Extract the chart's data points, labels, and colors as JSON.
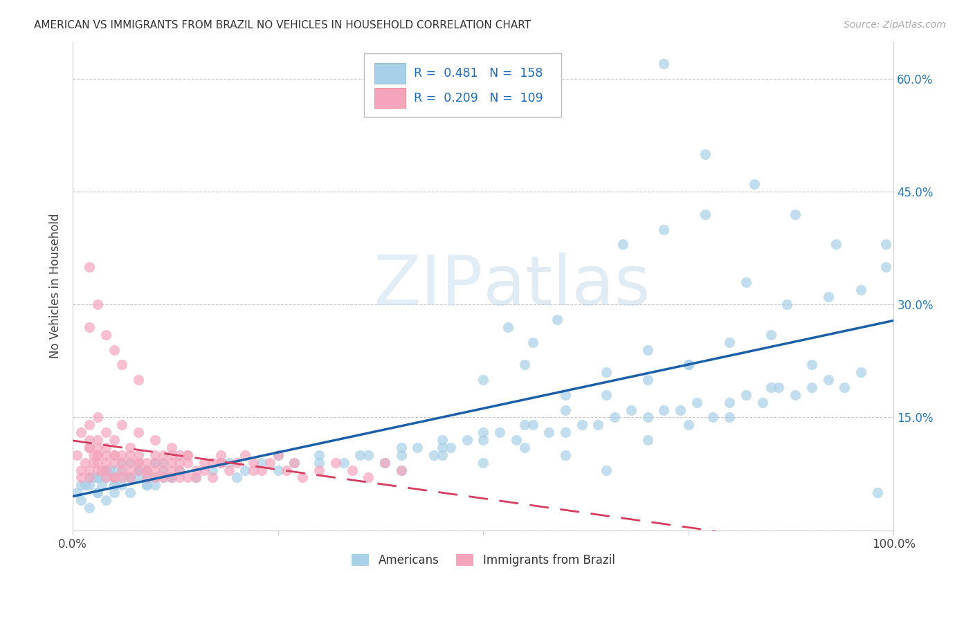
{
  "title": "AMERICAN VS IMMIGRANTS FROM BRAZIL NO VEHICLES IN HOUSEHOLD CORRELATION CHART",
  "source": "Source: ZipAtlas.com",
  "ylabel": "No Vehicles in Household",
  "xlim": [
    0,
    1.0
  ],
  "ylim": [
    0,
    0.65
  ],
  "legend_R1": "0.481",
  "legend_N1": "158",
  "legend_R2": "0.209",
  "legend_N2": "109",
  "blue_color": "#a8d0e8",
  "pink_color": "#f4a5bc",
  "blue_line_color": "#1a5fa8",
  "pink_line_color": "#d63c5e",
  "watermark_zip": "ZIP",
  "watermark_atlas": "atlas",
  "grid_color": "#c8c8c8",
  "blue_scatter_x": [
    0.005,
    0.01,
    0.015,
    0.02,
    0.025,
    0.03,
    0.035,
    0.04,
    0.045,
    0.05,
    0.01,
    0.02,
    0.03,
    0.04,
    0.05,
    0.06,
    0.07,
    0.08,
    0.09,
    0.1,
    0.02,
    0.03,
    0.04,
    0.05,
    0.06,
    0.07,
    0.08,
    0.09,
    0.1,
    0.11,
    0.03,
    0.04,
    0.05,
    0.06,
    0.07,
    0.08,
    0.09,
    0.1,
    0.11,
    0.12,
    0.04,
    0.05,
    0.06,
    0.07,
    0.08,
    0.09,
    0.1,
    0.11,
    0.12,
    0.13,
    0.15,
    0.17,
    0.19,
    0.21,
    0.23,
    0.25,
    0.27,
    0.3,
    0.33,
    0.36,
    0.38,
    0.4,
    0.42,
    0.44,
    0.46,
    0.48,
    0.5,
    0.52,
    0.54,
    0.56,
    0.58,
    0.6,
    0.62,
    0.64,
    0.66,
    0.68,
    0.7,
    0.72,
    0.74,
    0.76,
    0.78,
    0.8,
    0.82,
    0.84,
    0.86,
    0.88,
    0.9,
    0.92,
    0.94,
    0.96,
    0.98,
    0.5,
    0.55,
    0.6,
    0.65,
    0.7,
    0.75,
    0.8,
    0.85,
    0.9,
    0.45,
    0.5,
    0.55,
    0.6,
    0.65,
    0.7,
    0.75,
    0.8,
    0.85,
    0.4,
    0.45,
    0.5,
    0.55,
    0.6,
    0.65,
    0.7,
    0.75,
    0.2,
    0.25,
    0.3,
    0.35,
    0.4,
    0.45,
    0.72,
    0.77,
    0.83,
    0.88,
    0.93,
    0.99,
    0.67,
    0.72,
    0.77,
    0.82,
    0.87,
    0.92,
    0.96,
    0.99,
    0.53,
    0.56,
    0.59
  ],
  "blue_scatter_y": [
    0.05,
    0.04,
    0.06,
    0.03,
    0.07,
    0.05,
    0.06,
    0.04,
    0.08,
    0.05,
    0.06,
    0.07,
    0.05,
    0.08,
    0.06,
    0.07,
    0.05,
    0.08,
    0.06,
    0.07,
    0.06,
    0.07,
    0.08,
    0.06,
    0.09,
    0.07,
    0.08,
    0.06,
    0.09,
    0.07,
    0.07,
    0.08,
    0.07,
    0.08,
    0.07,
    0.08,
    0.07,
    0.09,
    0.08,
    0.07,
    0.07,
    0.08,
    0.06,
    0.09,
    0.07,
    0.08,
    0.06,
    0.09,
    0.07,
    0.08,
    0.07,
    0.08,
    0.09,
    0.08,
    0.09,
    0.1,
    0.09,
    0.1,
    0.09,
    0.1,
    0.09,
    0.1,
    0.11,
    0.1,
    0.11,
    0.12,
    0.12,
    0.13,
    0.12,
    0.14,
    0.13,
    0.13,
    0.14,
    0.14,
    0.15,
    0.16,
    0.15,
    0.16,
    0.16,
    0.17,
    0.15,
    0.17,
    0.18,
    0.17,
    0.19,
    0.18,
    0.19,
    0.2,
    0.19,
    0.21,
    0.05,
    0.2,
    0.22,
    0.18,
    0.21,
    0.24,
    0.22,
    0.25,
    0.26,
    0.22,
    0.11,
    0.13,
    0.14,
    0.16,
    0.18,
    0.2,
    0.22,
    0.15,
    0.19,
    0.08,
    0.1,
    0.09,
    0.11,
    0.1,
    0.08,
    0.12,
    0.14,
    0.07,
    0.08,
    0.09,
    0.1,
    0.11,
    0.12,
    0.62,
    0.5,
    0.46,
    0.42,
    0.38,
    0.38,
    0.38,
    0.4,
    0.42,
    0.33,
    0.3,
    0.31,
    0.32,
    0.35,
    0.27,
    0.25,
    0.28
  ],
  "pink_scatter_x": [
    0.005,
    0.01,
    0.015,
    0.02,
    0.01,
    0.02,
    0.025,
    0.03,
    0.01,
    0.02,
    0.02,
    0.03,
    0.02,
    0.03,
    0.025,
    0.035,
    0.03,
    0.04,
    0.03,
    0.04,
    0.03,
    0.04,
    0.05,
    0.04,
    0.05,
    0.04,
    0.05,
    0.05,
    0.06,
    0.05,
    0.06,
    0.06,
    0.07,
    0.06,
    0.07,
    0.07,
    0.08,
    0.07,
    0.08,
    0.08,
    0.09,
    0.08,
    0.09,
    0.09,
    0.1,
    0.09,
    0.1,
    0.1,
    0.11,
    0.1,
    0.11,
    0.11,
    0.12,
    0.11,
    0.12,
    0.12,
    0.13,
    0.12,
    0.13,
    0.13,
    0.14,
    0.13,
    0.14,
    0.14,
    0.15,
    0.15,
    0.16,
    0.16,
    0.17,
    0.17,
    0.18,
    0.18,
    0.19,
    0.2,
    0.21,
    0.22,
    0.23,
    0.24,
    0.25,
    0.26,
    0.27,
    0.28,
    0.3,
    0.32,
    0.34,
    0.36,
    0.38,
    0.4,
    0.02,
    0.03,
    0.04,
    0.05,
    0.06,
    0.07,
    0.08,
    0.1,
    0.12,
    0.14,
    0.18,
    0.22,
    0.02,
    0.03,
    0.02,
    0.04,
    0.05,
    0.06,
    0.08
  ],
  "pink_scatter_y": [
    0.1,
    0.08,
    0.09,
    0.11,
    0.07,
    0.12,
    0.1,
    0.09,
    0.13,
    0.08,
    0.11,
    0.1,
    0.07,
    0.12,
    0.09,
    0.08,
    0.1,
    0.07,
    0.11,
    0.09,
    0.08,
    0.1,
    0.07,
    0.11,
    0.09,
    0.08,
    0.1,
    0.07,
    0.09,
    0.1,
    0.08,
    0.07,
    0.09,
    0.1,
    0.08,
    0.07,
    0.09,
    0.1,
    0.08,
    0.09,
    0.07,
    0.1,
    0.08,
    0.09,
    0.07,
    0.08,
    0.1,
    0.09,
    0.07,
    0.08,
    0.09,
    0.1,
    0.07,
    0.08,
    0.09,
    0.1,
    0.07,
    0.08,
    0.09,
    0.1,
    0.07,
    0.08,
    0.09,
    0.1,
    0.07,
    0.08,
    0.09,
    0.08,
    0.09,
    0.07,
    0.1,
    0.09,
    0.08,
    0.09,
    0.1,
    0.09,
    0.08,
    0.09,
    0.1,
    0.08,
    0.09,
    0.07,
    0.08,
    0.09,
    0.08,
    0.07,
    0.09,
    0.08,
    0.14,
    0.15,
    0.13,
    0.12,
    0.14,
    0.11,
    0.13,
    0.12,
    0.11,
    0.1,
    0.09,
    0.08,
    0.35,
    0.3,
    0.27,
    0.26,
    0.24,
    0.22,
    0.2
  ]
}
